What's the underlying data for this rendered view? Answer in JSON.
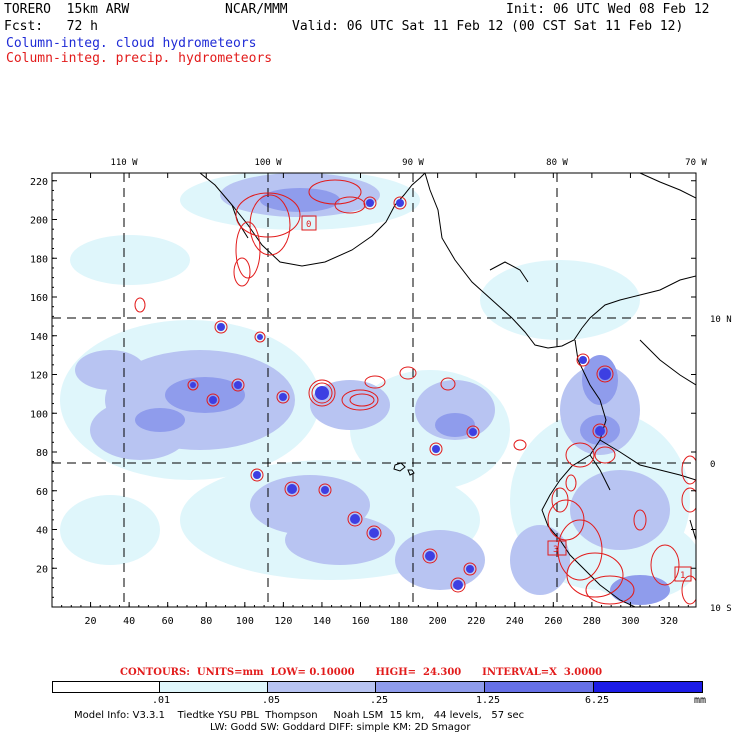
{
  "header": {
    "model": "TORERO  15km ARW",
    "org": "NCAR/MMM",
    "init": "Init: 06 UTC Wed 08 Feb 12",
    "fcst": "Fcst:   72 h",
    "valid": "Valid: 06 UTC Sat 11 Feb 12 (00 CST Sat 11 Feb 12)",
    "line_cloud": "Column-integ. cloud hydrometeors",
    "line_precip": "Column-integ. precip. hydrometeors"
  },
  "colors": {
    "cloud_text": "#1f2bd6",
    "precip_text": "#e21b1b",
    "shade_1": "#dff6fb",
    "shade_2": "#b8c4f2",
    "shade_3": "#8f9cec",
    "shade_4": "#6670e6",
    "shade_5": "#3d3fe2",
    "shade_6": "#1c1ce6"
  },
  "map": {
    "top_lon_labels": [
      "110 W",
      "100 W",
      "90 W",
      "80 W",
      "70 W"
    ],
    "right_lat_labels": [
      "10 N",
      "0",
      "10 S"
    ],
    "x_ticks": [
      "20",
      "40",
      "60",
      "80",
      "100",
      "120",
      "140",
      "160",
      "180",
      "200",
      "220",
      "240",
      "260",
      "280",
      "300",
      "320"
    ],
    "y_ticks": [
      "20",
      "40",
      "60",
      "80",
      "100",
      "120",
      "140",
      "160",
      "180",
      "200",
      "220"
    ],
    "box_labels": [
      "0",
      "3",
      "1"
    ],
    "x_range": [
      0,
      334
    ],
    "y_range": [
      0,
      224
    ]
  },
  "legend": {
    "contours": "CONTOURS:  UNITS=mm  LOW= 0.10000      HIGH=  24.300      INTERVAL=X  3.0000",
    "ticks": [
      ".01",
      ".05",
      ".25",
      "1.25",
      "6.25"
    ],
    "units": "mm"
  },
  "footer": {
    "line1": "Model Info: V3.3.1    Tiedtke YSU PBL  Thompson     Noah LSM  15 km,   44 levels,   57 sec",
    "line2": "LW: Godd SW: Goddard DIFF: simple KM: 2D Smagor"
  }
}
